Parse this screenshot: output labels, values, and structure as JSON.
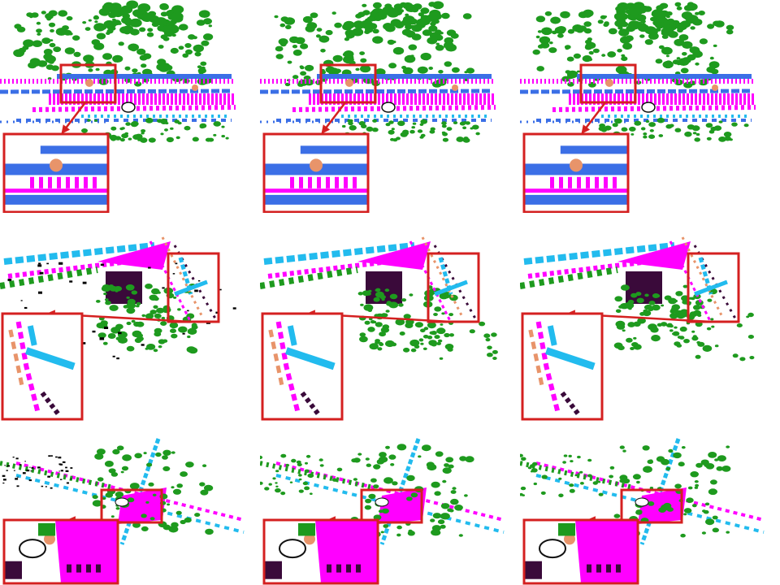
{
  "figure": {
    "rows": 3,
    "columns": 3,
    "row_scenes": [
      "street-scene",
      "intersection-scene-1",
      "intersection-scene-2"
    ],
    "colors": {
      "vegetation": "#1e9a1e",
      "road": "#ff00ff",
      "building": "#3b6fe6",
      "sidewalk": "#22bbee",
      "pole": "#e8946a",
      "car": "#3a0a3a",
      "noise": "#000000",
      "highlight_box": "#d42020",
      "arrow": "#d42020"
    }
  }
}
